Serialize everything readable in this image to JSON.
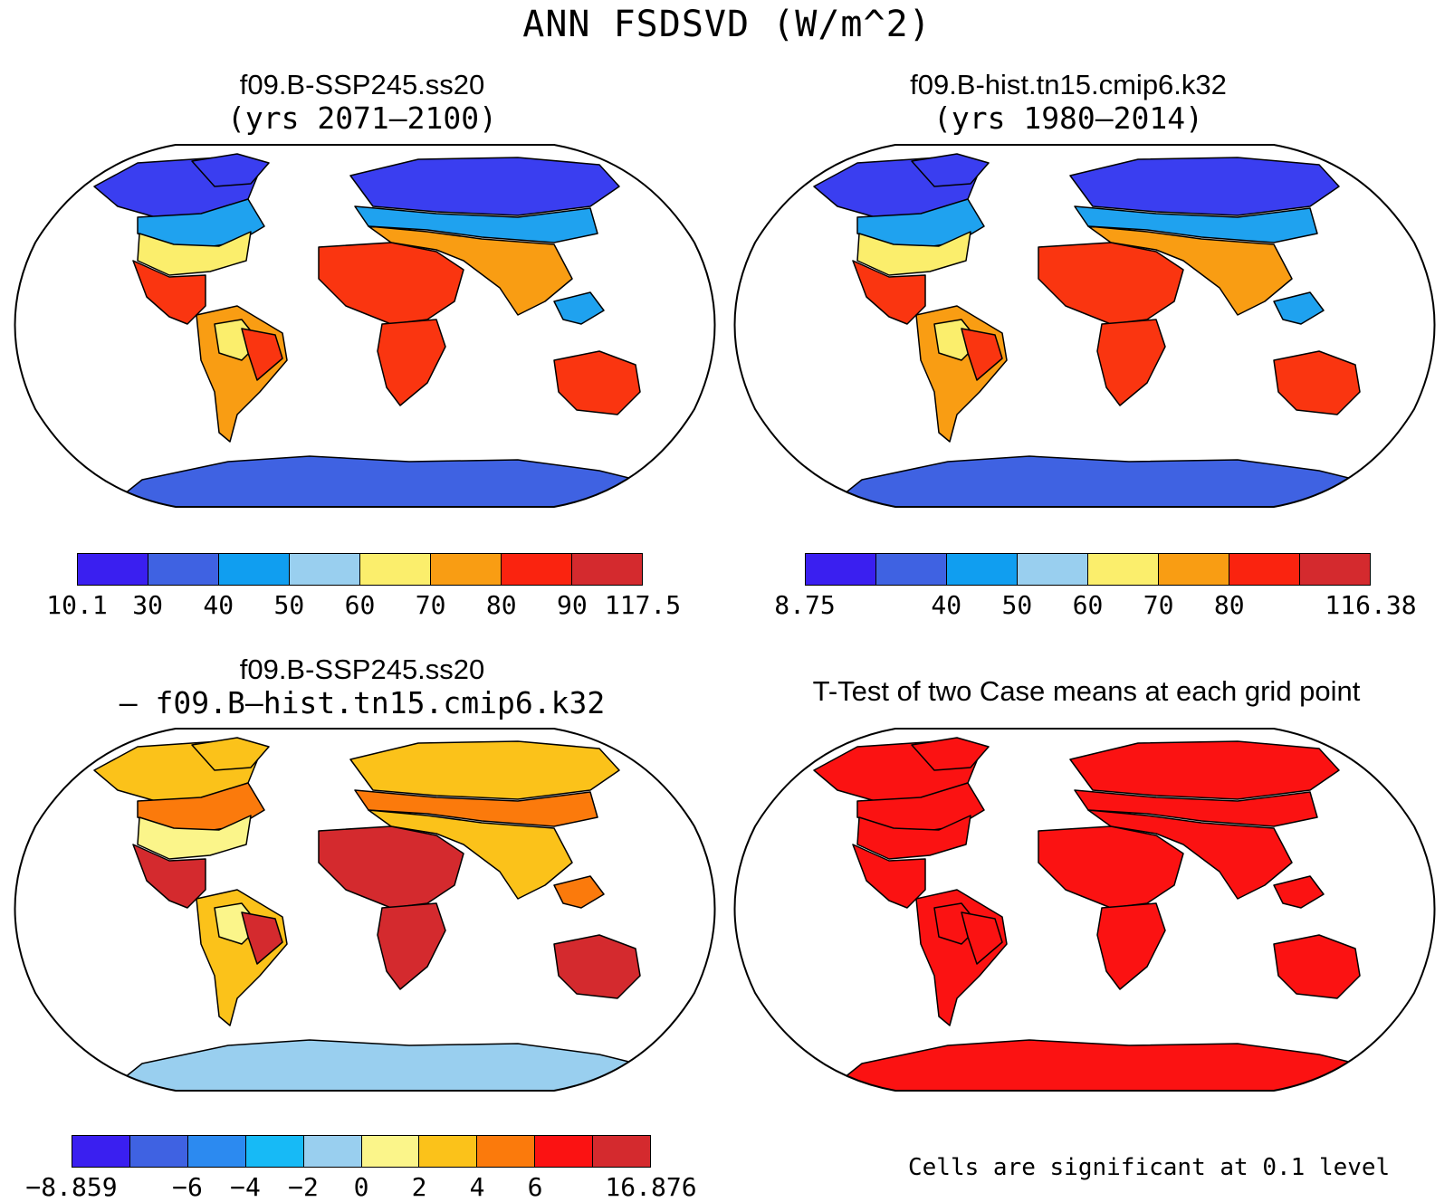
{
  "title": "ANN FSDSVD (W/m^2)",
  "panels": {
    "tl": {
      "title": "f09.B-SSP245.ss20",
      "subtitle": "(yrs 2071–2100)"
    },
    "tr": {
      "title": "f09.B-hist.tn15.cmip6.k32",
      "subtitle": "(yrs 1980–2014)"
    },
    "bl": {
      "title": "f09.B-SSP245.ss20",
      "subtitle": "– f09.B–hist.tn15.cmip6.k32"
    },
    "br": {
      "title": "T-Test of two Case means at each grid point",
      "note": "Cells are significant at 0.1 level"
    }
  },
  "colorbars": {
    "tl": {
      "colors": [
        "#3a1ff0",
        "#3f62e2",
        "#109ef0",
        "#99cfef",
        "#fbee6c",
        "#f99d13",
        "#fa230f",
        "#d42a2e"
      ],
      "ticks": [
        "10.1",
        "30",
        "40",
        "50",
        "60",
        "70",
        "80",
        "90",
        "117.5"
      ]
    },
    "tr": {
      "colors": [
        "#3a1ff0",
        "#3f62e2",
        "#109ef0",
        "#99cfef",
        "#fbee6c",
        "#f99d13",
        "#fa230f",
        "#d42a2e"
      ],
      "ticks": [
        "8.75",
        "",
        "40",
        "50",
        "60",
        "70",
        "80",
        "",
        "116.38"
      ]
    },
    "bl": {
      "colors": [
        "#3a1ff0",
        "#3f62e2",
        "#2c8af0",
        "#17baf6",
        "#99cfef",
        "#fbf58a",
        "#fbc21a",
        "#fb7a0c",
        "#fb1212",
        "#d42a2e"
      ],
      "ticks": [
        "−8.859",
        "",
        "−6",
        "−4",
        "−2",
        "0",
        "2",
        "4",
        "6",
        "",
        "16.876"
      ]
    }
  },
  "map_colors": {
    "ocean": "#ffffff",
    "coast": "#000000",
    "tl": {
      "north": "#3a3ef0",
      "high": "#1fa2ef",
      "mid": "#fbee6c",
      "warm": "#f99d13",
      "hot": "#fa3510",
      "ant": "#3f62e2"
    },
    "tr": {
      "north": "#3a3ef0",
      "high": "#1fa2ef",
      "mid": "#fbee6c",
      "warm": "#f99d13",
      "hot": "#fa3510",
      "ant": "#3f62e2"
    },
    "bl": {
      "north": "#fbc21a",
      "high": "#fb7a0c",
      "mid": "#fbf58a",
      "warm": "#fbc21a",
      "hot": "#d42a2e",
      "ant": "#99cfef"
    },
    "br": {
      "north": "#fb1212",
      "high": "#fb1212",
      "mid": "#fb1212",
      "warm": "#fb1212",
      "hot": "#fb1212",
      "ant": "#fb1212"
    }
  }
}
